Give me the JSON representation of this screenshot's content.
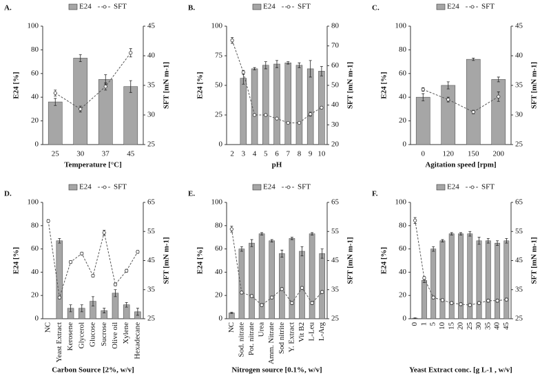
{
  "chart_data": [
    {
      "type": "bar",
      "title": "A.",
      "xlabel": "Temperature [°C]",
      "ylabel": "E24 [%]",
      "y2label": "SFT [mN m-1]",
      "categories": [
        "25",
        "30",
        "37",
        "45"
      ],
      "series": [
        {
          "name": "E24",
          "color": "#a6a6a6",
          "values": [
            36,
            73,
            55,
            49
          ],
          "errors": [
            3,
            3,
            4,
            5
          ]
        },
        {
          "name": "SFT",
          "color": "#555555",
          "axis": "y2",
          "values": [
            33.7,
            31.0,
            34.8,
            40.5
          ],
          "errors": [
            0.5,
            0.5,
            0.6,
            0.7
          ]
        }
      ],
      "ylim": [
        0,
        100
      ],
      "yticks": [
        0,
        20,
        40,
        60,
        80,
        100
      ],
      "y2lim": [
        25,
        45
      ],
      "y2ticks": [
        25,
        30,
        35,
        40,
        45
      ]
    },
    {
      "type": "bar",
      "title": "B.",
      "xlabel": "pH",
      "ylabel": "E24 [%]",
      "y2label": "SFT [mN m-1]",
      "categories": [
        "2",
        "3",
        "4",
        "5",
        "6",
        "7",
        "8",
        "9",
        "10"
      ],
      "series": [
        {
          "name": "E24",
          "color": "#a6a6a6",
          "values": [
            null,
            56,
            64,
            67,
            68,
            69,
            67,
            64,
            62
          ],
          "errors": [
            null,
            5,
            1,
            3,
            3,
            1,
            2,
            7,
            4
          ]
        },
        {
          "name": "SFT",
          "color": "#555555",
          "axis": "y2",
          "values": [
            72.8,
            56.6,
            35,
            35,
            33.2,
            31,
            31,
            35.4,
            38.7
          ],
          "errors": [
            1.5,
            1,
            0.5,
            0.5,
            0.5,
            0.5,
            0.5,
            1,
            0.5
          ]
        }
      ],
      "ylim": [
        0,
        100
      ],
      "yticks": [
        0,
        25,
        50,
        75,
        100
      ],
      "y2lim": [
        20,
        80
      ],
      "y2ticks": [
        20,
        30,
        40,
        50,
        60,
        70,
        80
      ]
    },
    {
      "type": "bar",
      "title": "C.",
      "xlabel": "Agitation speed [rpm]",
      "ylabel": "E24 [%]",
      "y2label": "SFT [mN m-1]",
      "categories": [
        "0",
        "120",
        "150",
        "200"
      ],
      "series": [
        {
          "name": "E24",
          "color": "#a6a6a6",
          "values": [
            40,
            50,
            72,
            55
          ],
          "errors": [
            3,
            3,
            1,
            2
          ]
        },
        {
          "name": "SFT",
          "color": "#555555",
          "axis": "y2",
          "values": [
            34.3,
            32.6,
            30.5,
            33.1
          ],
          "errors": [
            0.3,
            0.4,
            0.3,
            0.8
          ]
        }
      ],
      "ylim": [
        0,
        100
      ],
      "yticks": [
        0,
        20,
        40,
        60,
        80,
        100
      ],
      "y2lim": [
        25,
        45
      ],
      "y2ticks": [
        25,
        30,
        35,
        40,
        45
      ]
    },
    {
      "type": "bar",
      "title": "D.",
      "xlabel": "Carbon Source [2%, w/v]",
      "ylabel": "E24 [%]",
      "y2label": "SFT [mN m-1]",
      "categories": [
        "NC",
        "Yeast Extract",
        "Kerosene",
        "Glycerol",
        "Glucose",
        "Sucrose",
        "Olive oil",
        "Xylene",
        "Hexadecane"
      ],
      "series": [
        {
          "name": "E24",
          "color": "#a6a6a6",
          "values": [
            null,
            67,
            9,
            9,
            15,
            7,
            22,
            12,
            6
          ],
          "errors": [
            null,
            2,
            3,
            3,
            4,
            2,
            3,
            2,
            3
          ]
        },
        {
          "name": "SFT",
          "color": "#555555",
          "axis": "y2",
          "values": [
            58.6,
            32.3,
            44.5,
            47.4,
            39.8,
            54.6,
            36.8,
            41.5,
            48
          ],
          "errors": [
            0.5,
            0.5,
            0.5,
            0.5,
            0.5,
            0.8,
            0.5,
            0.5,
            0.5
          ]
        }
      ],
      "ylim": [
        0,
        100
      ],
      "yticks": [
        0,
        20,
        40,
        60,
        80,
        100
      ],
      "y2lim": [
        25,
        65
      ],
      "y2ticks": [
        25,
        35,
        45,
        55,
        65
      ]
    },
    {
      "type": "bar",
      "title": "E.",
      "xlabel": "Nitrogen source [0.1%, w/v]",
      "ylabel": "E24 [%]",
      "y2label": "SFT [mN m-1]",
      "categories": [
        "NC",
        "Sod. nitrate",
        "Pot. nitrate",
        "Urea",
        "Amm. Nitrate",
        "Sod nitrite",
        "Y. Extract",
        "Vit B2",
        "L-Leu",
        "L-Arg"
      ],
      "series": [
        {
          "name": "E24",
          "color": "#a6a6a6",
          "values": [
            5,
            60,
            65,
            73,
            67,
            56,
            69,
            58,
            73,
            56
          ],
          "errors": [
            0.5,
            2,
            3,
            1,
            1,
            3,
            1,
            4,
            1,
            4
          ]
        },
        {
          "name": "SFT",
          "color": "#555555",
          "axis": "y2",
          "values": [
            55.8,
            34,
            32.8,
            29.7,
            32.3,
            35.2,
            30.4,
            35.6,
            30.4,
            34.2
          ],
          "errors": [
            1,
            0.5,
            0.5,
            0.5,
            0.5,
            0.5,
            0.5,
            0.5,
            0.5,
            0.5
          ]
        }
      ],
      "ylim": [
        0,
        100
      ],
      "yticks": [
        0,
        20,
        40,
        60,
        80,
        100
      ],
      "y2lim": [
        25,
        65
      ],
      "y2ticks": [
        25,
        35,
        45,
        55,
        65
      ]
    },
    {
      "type": "bar",
      "title": "F.",
      "xlabel": "Yeast Extract conc. [g L-1 , w/v]",
      "ylabel": "E24 [%]",
      "y2label": "SFT [mN m-1]",
      "categories": [
        "0",
        "1",
        "5",
        "10",
        "15",
        "20",
        "25",
        "30",
        "35",
        "40",
        "45"
      ],
      "series": [
        {
          "name": "E24",
          "color": "#a6a6a6",
          "values": [
            0.5,
            33,
            60,
            67,
            73,
            73,
            73,
            67,
            67,
            65,
            67
          ],
          "errors": [
            0.2,
            2,
            2,
            1,
            1,
            1,
            2,
            3,
            2,
            2,
            2
          ]
        },
        {
          "name": "SFT",
          "color": "#555555",
          "axis": "y2",
          "values": [
            58.8,
            39,
            32.3,
            31.4,
            30.4,
            30,
            29.7,
            30.4,
            31.2,
            31.2,
            31.6
          ],
          "errors": [
            1,
            0.5,
            0.5,
            0.5,
            0.5,
            0.5,
            0.5,
            0.5,
            0.5,
            0.5,
            0.5
          ]
        }
      ],
      "ylim": [
        0,
        100
      ],
      "yticks": [
        0,
        20,
        40,
        60,
        80,
        100
      ],
      "y2lim": [
        25,
        65
      ],
      "y2ticks": [
        25,
        35,
        45,
        55,
        65
      ]
    }
  ]
}
